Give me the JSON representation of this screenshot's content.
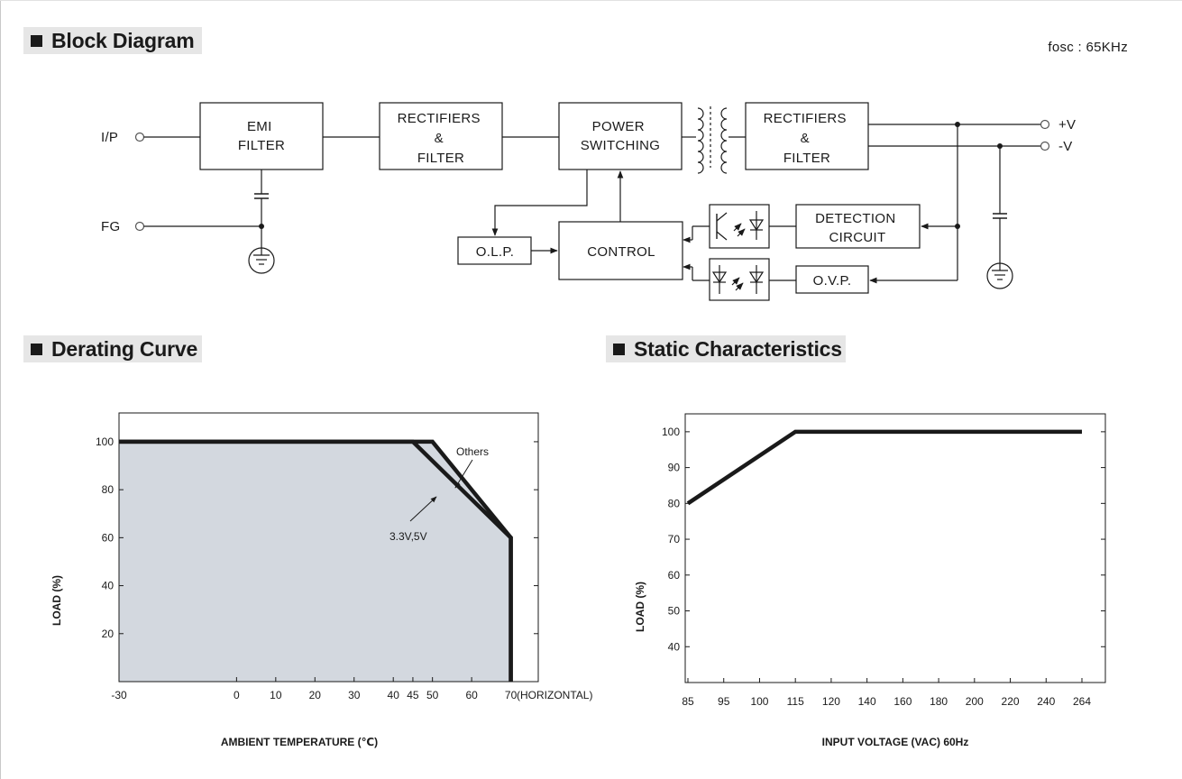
{
  "sections": {
    "block_diagram": "Block Diagram",
    "derating_curve": "Derating Curve",
    "static_characteristics": "Static Characteristics"
  },
  "block_diagram": {
    "fosc": "fosc : 65KHz",
    "terminals": {
      "ip": "I/P",
      "fg": "FG",
      "vplus": "+V",
      "vminus": "-V"
    },
    "blocks": {
      "emi_filter": [
        "EMI",
        "FILTER"
      ],
      "rectifiers_in": [
        "RECTIFIERS",
        "&",
        "FILTER"
      ],
      "power_switching": [
        "POWER",
        "SWITCHING"
      ],
      "rectifiers_out": [
        "RECTIFIERS",
        "&",
        "FILTER"
      ],
      "detection": [
        "DETECTION",
        "CIRCUIT"
      ],
      "olp": "O.L.P.",
      "control": "CONTROL",
      "ovp": "O.V.P."
    }
  },
  "chart_data": [
    {
      "type": "area",
      "xlabel": "AMBIENT TEMPERATURE (℃)",
      "ylabel": "LOAD (%)",
      "x_ticks": [
        "-30",
        "0",
        "10",
        "20",
        "30",
        "40",
        "45",
        "50",
        "60",
        "70"
      ],
      "x_ticks_values": [
        -30,
        0,
        10,
        20,
        30,
        40,
        45,
        50,
        60,
        70
      ],
      "x_axis_note": "(HORIZONTAL)",
      "y_ticks": [
        "20",
        "40",
        "60",
        "80",
        "100"
      ],
      "y_ticks_values": [
        20,
        40,
        60,
        80,
        100
      ],
      "xlim": [
        -30,
        77
      ],
      "ylim": [
        0,
        112
      ],
      "series": [
        {
          "name": "Others",
          "points": [
            [
              -30,
              100
            ],
            [
              50,
              100
            ],
            [
              70,
              60
            ],
            [
              70,
              0
            ]
          ]
        },
        {
          "name": "3.3V,5V",
          "points": [
            [
              -30,
              100
            ],
            [
              45,
              100
            ],
            [
              70,
              60
            ],
            [
              70,
              0
            ]
          ]
        }
      ],
      "annotations": [
        "Others",
        "3.3V,5V"
      ],
      "fill": "#d3d8df"
    },
    {
      "type": "line",
      "xlabel": "INPUT VOLTAGE (VAC) 60Hz",
      "ylabel": "LOAD (%)",
      "x_ticks": [
        "85",
        "95",
        "100",
        "115",
        "120",
        "140",
        "160",
        "180",
        "200",
        "220",
        "240",
        "264"
      ],
      "y_ticks": [
        "40",
        "50",
        "60",
        "70",
        "80",
        "90",
        "100"
      ],
      "y_ticks_values": [
        40,
        50,
        60,
        70,
        80,
        90,
        100
      ],
      "ylim": [
        30,
        105
      ],
      "series": [
        {
          "points": [
            [
              "85",
              80
            ],
            [
              "115",
              100
            ],
            [
              "264",
              100
            ]
          ]
        }
      ]
    }
  ]
}
